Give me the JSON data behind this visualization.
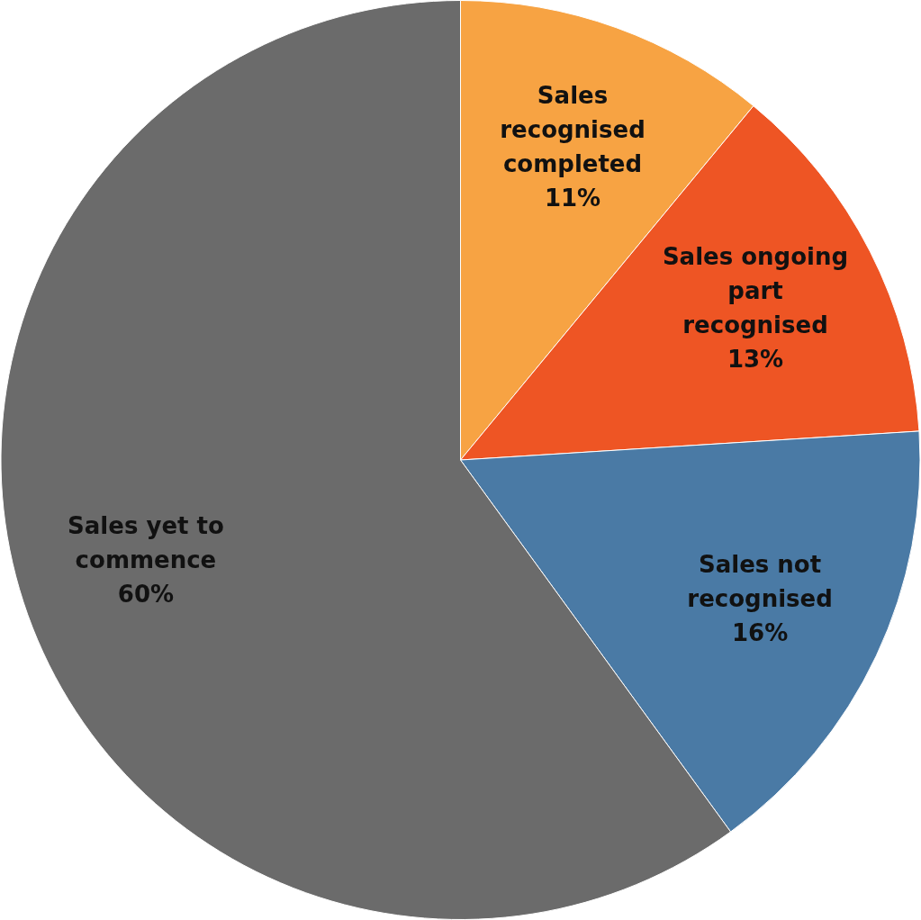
{
  "chart_data": {
    "type": "pie",
    "categories": [
      "Sales recognised completed",
      "Sales ongoing part recognised",
      "Sales not recognised",
      "Sales yet to commence"
    ],
    "values": [
      11,
      13,
      16,
      60
    ],
    "value_labels": [
      "11%",
      "13%",
      "16%",
      "60%"
    ],
    "colors": [
      "#f7a343",
      "#ee5524",
      "#4a7aa5",
      "#6b6b6b"
    ],
    "legend": false
  }
}
